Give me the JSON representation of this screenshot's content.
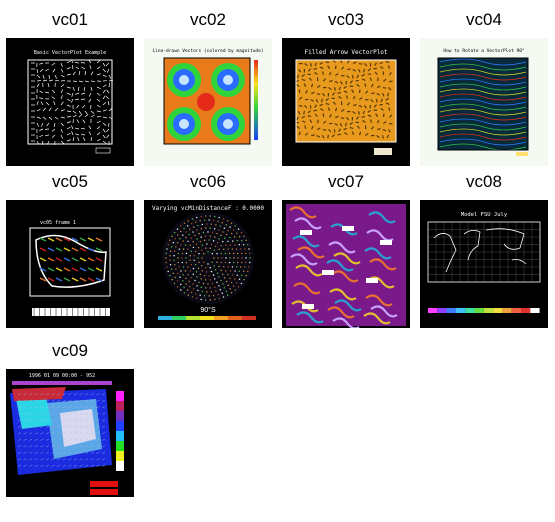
{
  "gallery": {
    "items": [
      {
        "id": "vc01",
        "label": "vc01",
        "title": "Basic VectorPlot Example"
      },
      {
        "id": "vc02",
        "label": "vc02",
        "title": "Line-drawn Vectors (colored by magnitude)"
      },
      {
        "id": "vc03",
        "label": "vc03",
        "title": "Filled Arrow VectorPlot"
      },
      {
        "id": "vc04",
        "label": "vc04",
        "title": "How to Rotate a VectorPlot 90°"
      },
      {
        "id": "vc05",
        "label": "vc05",
        "title": "vc05 frame 1"
      },
      {
        "id": "vc06",
        "label": "vc06",
        "title": "Varying vcMinDistanceF : 0.0000",
        "caption": "90°S"
      },
      {
        "id": "vc07",
        "label": "vc07"
      },
      {
        "id": "vc08",
        "label": "vc08",
        "title": "Model FSU July"
      },
      {
        "id": "vc09",
        "label": "vc09",
        "title": "1996 01 09 00:00 - 952"
      }
    ]
  }
}
